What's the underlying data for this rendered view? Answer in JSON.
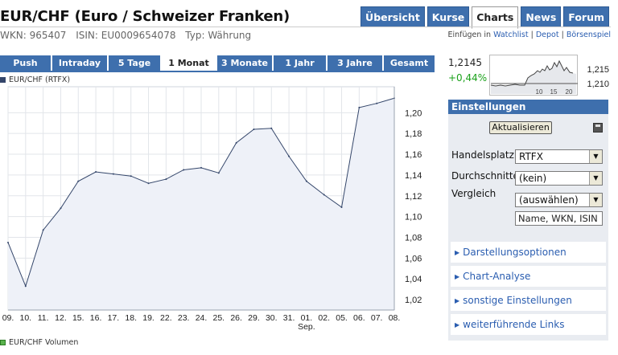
{
  "header": {
    "title": "EUR/CHF (Euro / Schweizer Franken)",
    "wkn": "WKN: 965407",
    "isin": "ISIN: EU0009654078",
    "typ": "Typ: Währung",
    "tabs": [
      {
        "label": "Übersicht",
        "active": false
      },
      {
        "label": "Kurse",
        "active": false
      },
      {
        "label": "Charts",
        "active": true
      },
      {
        "label": "News",
        "active": false
      },
      {
        "label": "Forum",
        "active": false
      }
    ],
    "links": {
      "prefix": "Einfügen in",
      "watchlist": "Watchlist",
      "sep1": " | ",
      "depot": "Depot",
      "sep2": " | ",
      "boersenspiel": "Börsenspiel"
    }
  },
  "range_tabs": [
    {
      "label": "Push",
      "active": false
    },
    {
      "label": "Intraday",
      "active": false
    },
    {
      "label": "5 Tage",
      "active": false
    },
    {
      "label": "1 Monat",
      "active": true
    },
    {
      "label": "3 Monate",
      "active": false
    },
    {
      "label": "1 Jahr",
      "active": false
    },
    {
      "label": "3 Jahre",
      "active": false
    },
    {
      "label": "Gesamt",
      "active": false
    }
  ],
  "chart_data": {
    "type": "area",
    "legend": "EUR/CHF (RTFX)",
    "categories": [
      "09.",
      "10.",
      "11.",
      "12.",
      "15.",
      "16.",
      "17.",
      "18.",
      "19.",
      "22.",
      "23.",
      "24.",
      "25.",
      "26.",
      "29.",
      "30.",
      "31.",
      "01.",
      "02.",
      "05.",
      "06.",
      "07.",
      "08."
    ],
    "month_label": {
      "after": "01.",
      "text": "Sep."
    },
    "values": [
      1.075,
      1.033,
      1.087,
      1.108,
      1.134,
      1.143,
      1.141,
      1.139,
      1.132,
      1.136,
      1.145,
      1.147,
      1.142,
      1.171,
      1.184,
      1.185,
      1.158,
      1.134,
      1.121,
      1.109,
      1.205,
      1.209,
      1.214
    ],
    "yticks": [
      1.02,
      1.04,
      1.06,
      1.08,
      1.1,
      1.12,
      1.14,
      1.16,
      1.18,
      1.2
    ],
    "ytick_labels": [
      "1,02",
      "1,04",
      "1,06",
      "1,08",
      "1,10",
      "1,12",
      "1,14",
      "1,16",
      "1,18",
      "1,20"
    ],
    "ylim": [
      1.01,
      1.225
    ],
    "grid": true,
    "line_color": "#34466a",
    "fill_color": "#eef1f8"
  },
  "volume_legend": "EUR/CHF Volumen",
  "mini_chart": {
    "last": "1,2145",
    "change": "+0,44%",
    "change_color": "#1aa11a",
    "ytick_labels": [
      "1,215",
      "1,210"
    ],
    "xtick_labels": [
      "10",
      "15",
      "20"
    ]
  },
  "settings": {
    "title": "Einstellungen",
    "update_button": "Aktualisieren",
    "handelsplatz_label": "Handelsplatz",
    "handelsplatz_value": "RTFX",
    "durchschnitte_label": "Durchschnitte",
    "durchschnitte_value": "(kein)",
    "vergleich_label": "Vergleich",
    "vergleich_value": "(auswählen)",
    "search_placeholder": "Name, WKN, ISIN",
    "sections": [
      "Darstellungsoptionen",
      "Chart-Analyse",
      "sonstige Einstellungen",
      "weiterführende Links"
    ]
  },
  "colors": {
    "tab_blue": "#3e6fad",
    "link_blue": "#2a5db0",
    "panel_bg": "#e9ecf1"
  }
}
